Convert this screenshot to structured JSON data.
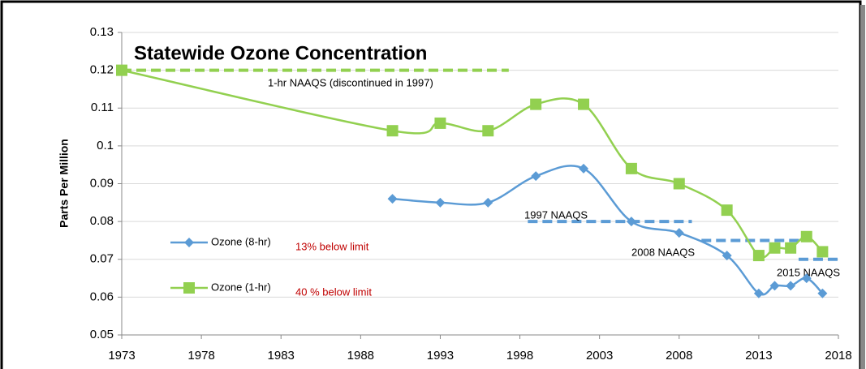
{
  "chart_data": {
    "type": "line",
    "title": "Statewide Ozone Concentration",
    "y_label": "Parts Per Million",
    "xlim": [
      1973,
      2018
    ],
    "xticks": [
      1973,
      1978,
      1983,
      1988,
      1993,
      1998,
      2003,
      2008,
      2013,
      2018
    ],
    "ylim": [
      0.05,
      0.13
    ],
    "yticks": [
      0.05,
      0.06,
      0.07,
      0.08,
      0.09,
      0.1,
      0.11,
      0.12,
      0.13
    ],
    "grid": true,
    "series": [
      {
        "name": "Ozone (8-hr)",
        "color": "#5b9bd5",
        "marker": "diamond",
        "note": "13% below limit",
        "x": [
          1990,
          1993,
          1996,
          1999,
          2002,
          2005,
          2008,
          2011,
          2013,
          2014,
          2015,
          2016,
          2017
        ],
        "values": [
          0.086,
          0.085,
          0.085,
          0.092,
          0.094,
          0.08,
          0.077,
          0.071,
          0.061,
          0.063,
          0.063,
          0.065,
          0.061
        ]
      },
      {
        "name": "Ozone (1-hr)",
        "color": "#92d050",
        "marker": "square",
        "note": "40 % below limit",
        "x": [
          1973,
          1990,
          1993,
          1996,
          1999,
          2002,
          2005,
          2008,
          2011,
          2013,
          2014,
          2015,
          2016,
          2017
        ],
        "values": [
          0.12,
          0.104,
          0.106,
          0.104,
          0.111,
          0.111,
          0.094,
          0.09,
          0.083,
          0.071,
          0.073,
          0.073,
          0.076,
          0.072
        ]
      }
    ],
    "reference_lines": [
      {
        "label": "1-hr NAAQS (discontinued in 1997)",
        "value": 0.12,
        "x": [
          1973,
          1997.3
        ],
        "color": "#92d050"
      },
      {
        "label": "1997 NAAQS",
        "value": 0.08,
        "x": [
          1998.5,
          2008.8
        ],
        "color": "#5b9bd5"
      },
      {
        "label": "2008 NAAQS",
        "value": 0.075,
        "x": [
          2009.4,
          2015.9
        ],
        "color": "#5b9bd5"
      },
      {
        "label": "2015 NAAQS",
        "value": 0.07,
        "x": [
          2015.5,
          2018
        ],
        "color": "#5b9bd5"
      }
    ]
  }
}
